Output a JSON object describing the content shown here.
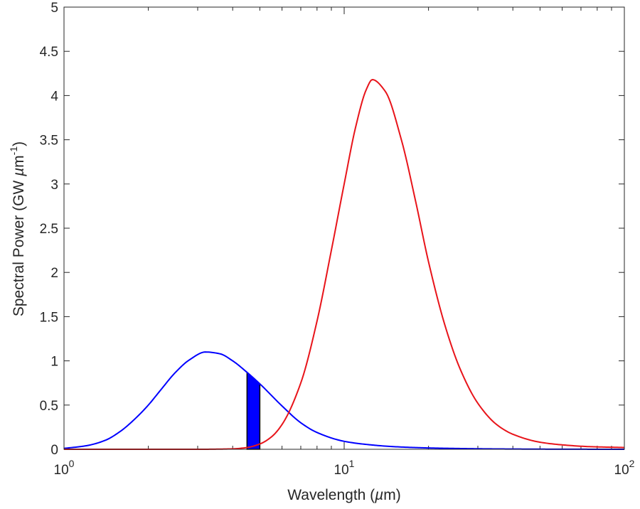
{
  "chart_data": {
    "type": "line",
    "xscale": "log",
    "xlim": [
      1,
      100
    ],
    "ylim": [
      0,
      5
    ],
    "xlabel": "Wavelength (µm)",
    "xlabel_parts": {
      "prefix": "Wavelength (",
      "unit": "µ",
      "suffix": "m)"
    },
    "ylabel": "Spectral Power (GW µm⁻¹)",
    "ylabel_parts": {
      "prefix": "Spectral Power (GW ",
      "unit": "µ",
      "mid": "m",
      "exp": "-1",
      "suffix": ")"
    },
    "x_ticks": [
      {
        "value": 1,
        "base": "10",
        "exp": "0"
      },
      {
        "value": 10,
        "base": "10",
        "exp": "1"
      },
      {
        "value": 100,
        "base": "10",
        "exp": "2"
      }
    ],
    "y_ticks": [
      {
        "value": 0,
        "label": "0"
      },
      {
        "value": 0.5,
        "label": "0.5"
      },
      {
        "value": 1,
        "label": "1"
      },
      {
        "value": 1.5,
        "label": "1.5"
      },
      {
        "value": 2,
        "label": "2"
      },
      {
        "value": 2.5,
        "label": "2.5"
      },
      {
        "value": 3,
        "label": "3"
      },
      {
        "value": 3.5,
        "label": "3.5"
      },
      {
        "value": 4,
        "label": "4"
      },
      {
        "value": 4.5,
        "label": "4.5"
      },
      {
        "value": 5,
        "label": "5"
      }
    ],
    "series": [
      {
        "name": "blue-curve",
        "color": "#0000ff",
        "x": [
          1.0,
          1.2,
          1.4,
          1.6,
          1.8,
          2.0,
          2.2,
          2.5,
          2.8,
          3.2,
          3.6,
          4.0,
          4.5,
          5.0,
          6.0,
          7.0,
          8.0,
          10.0,
          12.0,
          15.0,
          20.0,
          30.0,
          40.0,
          60.0,
          100.0
        ],
        "y": [
          0.01,
          0.04,
          0.1,
          0.21,
          0.35,
          0.5,
          0.66,
          0.87,
          1.01,
          1.1,
          1.08,
          1.0,
          0.87,
          0.74,
          0.49,
          0.3,
          0.19,
          0.09,
          0.055,
          0.03,
          0.015,
          0.006,
          0.003,
          0.001,
          0.0
        ]
      },
      {
        "name": "red-curve",
        "color": "#e8141a",
        "x": [
          1.0,
          3.0,
          4.0,
          4.5,
          5.0,
          5.5,
          6.0,
          7.0,
          8.0,
          9.0,
          10.0,
          11.0,
          12.0,
          12.6,
          14.0,
          16.0,
          18.0,
          20.0,
          23.0,
          26.0,
          30.0,
          35.0,
          40.0,
          50.0,
          60.0,
          75.0,
          100.0
        ],
        "y": [
          0.0,
          0.0,
          0.005,
          0.02,
          0.06,
          0.14,
          0.28,
          0.75,
          1.45,
          2.25,
          3.0,
          3.65,
          4.07,
          4.18,
          4.05,
          3.5,
          2.8,
          2.12,
          1.38,
          0.9,
          0.52,
          0.28,
          0.17,
          0.08,
          0.05,
          0.03,
          0.02
        ]
      }
    ],
    "band": {
      "x_start": 4.5,
      "x_end": 5.0,
      "fill": "#0000ff",
      "edge": "#000000",
      "top_series": "blue-curve"
    }
  }
}
